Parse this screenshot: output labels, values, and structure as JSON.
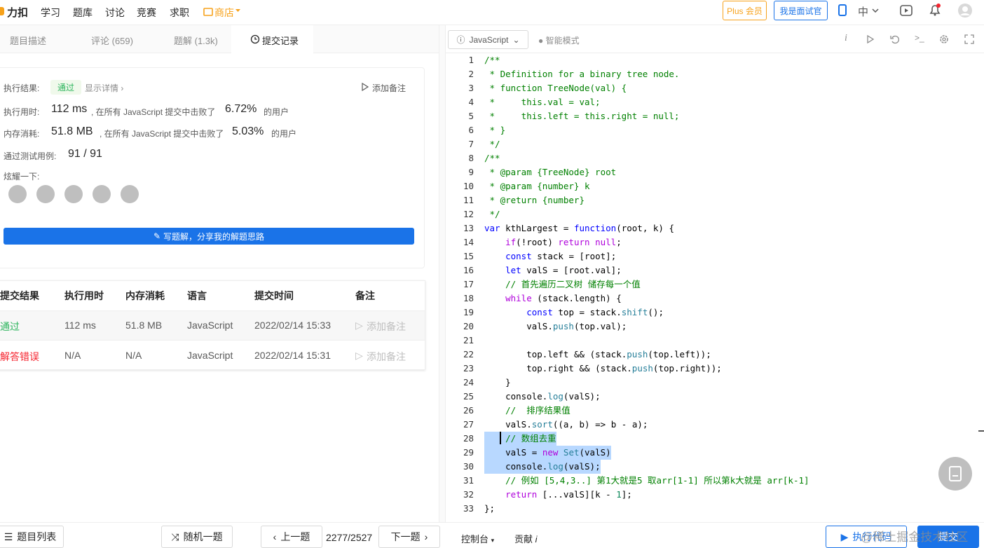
{
  "nav": {
    "logo": "力扣",
    "links": [
      "学习",
      "题库",
      "讨论",
      "竞赛",
      "求职",
      "商店"
    ],
    "plus": "Plus 会员",
    "interviewer": "我是面试官",
    "lang": "中"
  },
  "tabs": [
    "题目描述",
    "评论 (659)",
    "题解 (1.3k)",
    "提交记录"
  ],
  "result": {
    "status_label": "执行结果:",
    "status": "通过",
    "details": "显示详情 ›",
    "add_note": "添加备注",
    "time_label": "执行用时:",
    "time": "112 ms",
    "time_text": ", 在所有 JavaScript 提交中击败了",
    "time_pct": "6.72%",
    "time_suffix": "的用户",
    "mem_label": "内存消耗:",
    "mem": "51.8 MB",
    "mem_text": ", 在所有 JavaScript 提交中击败了",
    "mem_pct": "5.03%",
    "mem_suffix": "的用户",
    "cases_label": "通过测试用例:",
    "cases": "91 / 91",
    "share_label": "炫耀一下:",
    "write_button": "写题解，分享我的解题思路"
  },
  "table": {
    "headers": [
      "提交结果",
      "执行用时",
      "内存消耗",
      "语言",
      "提交时间",
      "备注"
    ],
    "rows": [
      [
        "通过",
        "112 ms",
        "51.8 MB",
        "JavaScript",
        "2022/02/14 15:33",
        "添加备注"
      ],
      [
        "解答错误",
        "N/A",
        "N/A",
        "JavaScript",
        "2022/02/14 15:31",
        "添加备注"
      ]
    ]
  },
  "editor": {
    "language": "JavaScript",
    "mode": "智能模式",
    "lines": [
      {
        "no": 1,
        "code": "/**"
      },
      {
        "no": 2,
        "code": " * Definition for a binary tree node."
      },
      {
        "no": 3,
        "code": " * function TreeNode(val) {"
      },
      {
        "no": 4,
        "code": " *     this.val = val;"
      },
      {
        "no": 5,
        "code": " *     this.left = this.right = null;"
      },
      {
        "no": 6,
        "code": " * }"
      },
      {
        "no": 7,
        "code": " */"
      },
      {
        "no": 8,
        "code": "/**"
      },
      {
        "no": 9,
        "code": " * @param {TreeNode} root"
      },
      {
        "no": 10,
        "code": " * @param {number} k"
      },
      {
        "no": 11,
        "code": " * @return {number}"
      },
      {
        "no": 12,
        "code": " */"
      },
      {
        "no": 13,
        "code": "var kthLargest = function(root, k) {"
      },
      {
        "no": 14,
        "code": "    if(!root) return null;"
      },
      {
        "no": 15,
        "code": "    const stack = [root];"
      },
      {
        "no": 16,
        "code": "    let valS = [root.val];"
      },
      {
        "no": 17,
        "code": "    // 首先遍历二叉树 储存每一个值"
      },
      {
        "no": 18,
        "code": "    while (stack.length) {"
      },
      {
        "no": 19,
        "code": "        const top = stack.shift();"
      },
      {
        "no": 20,
        "code": "        valS.push(top.val);"
      },
      {
        "no": 21
      },
      {
        "no": 22,
        "code": "        top.left && (stack.push(top.left));"
      },
      {
        "no": 23,
        "code": "        top.right && (stack.push(top.right));"
      },
      {
        "no": 24,
        "code": "    }"
      },
      {
        "no": 25,
        "code": "    console.log(valS);"
      },
      {
        "no": 26,
        "code": "    //  排序结果值"
      },
      {
        "no": 27,
        "code": "    valS.sort((a, b) => b - a);"
      },
      {
        "no": 28,
        "code": "    // 数组去重"
      },
      {
        "no": 29,
        "code": "    valS = new Set(valS)"
      },
      {
        "no": 30,
        "code": "    console.log(valS);"
      },
      {
        "no": 31,
        "code": "    // 例如 [5,4,3..] 第1大就是5 取arr[1-1] 所以第k大就是 arr[k-1]"
      },
      {
        "no": 32,
        "code": "    return [...valS][k - 1];"
      },
      {
        "no": 33,
        "code": "};"
      }
    ]
  },
  "footer": {
    "list": "题目列表",
    "random": "随机一题",
    "prev": "上一题",
    "progress": "2277/2527",
    "next": "下一题",
    "console": "控制台",
    "contribute": "贡献",
    "run": "执行代码",
    "submit": "提交"
  },
  "watermark": "@稀土掘金技术社区"
}
